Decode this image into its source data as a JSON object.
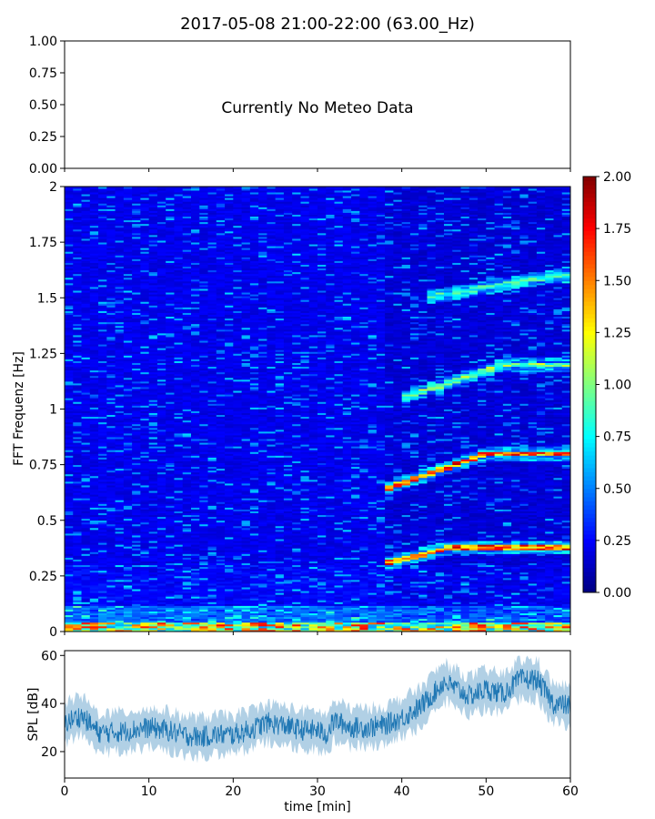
{
  "title": "2017-05-08 21:00-22:00 (63.00_Hz)",
  "meteo_panel": {
    "message": "Currently No Meteo Data",
    "yticks": [
      "0.00",
      "0.25",
      "0.50",
      "0.75",
      "1.00"
    ]
  },
  "chart_data": [
    {
      "type": "line",
      "panel": "meteo",
      "annotation": "Currently No Meteo Data",
      "ylim": [
        0,
        1
      ],
      "ytick_labels": [
        "0.00",
        "0.25",
        "0.50",
        "0.75",
        "1.00"
      ],
      "series": []
    },
    {
      "type": "heatmap",
      "panel": "spectrogram",
      "ylabel": "FFT Frequenz [Hz]",
      "xlim": [
        0,
        60
      ],
      "ylim": [
        0,
        2
      ],
      "ytick_labels": [
        "0",
        "0.25",
        "0.5",
        "0.75",
        "1",
        "1.25",
        "1.5",
        "1.75",
        "2"
      ],
      "colormap": "jet",
      "colorbar": {
        "range": [
          0,
          2
        ],
        "tick_labels": [
          "0.00",
          "0.25",
          "0.50",
          "0.75",
          "1.00",
          "1.25",
          "1.50",
          "1.75",
          "2.00"
        ]
      },
      "features": [
        {
          "description": "strong low-frequency band",
          "freq_hz": 0.02,
          "value": 1.8
        },
        {
          "description": "rising tone",
          "t_min": [
            38,
            46
          ],
          "freq_hz": [
            0.31,
            0.38
          ],
          "value": 1.9
        },
        {
          "description": "rising tone",
          "t_min": [
            38,
            50
          ],
          "freq_hz": [
            0.64,
            0.8
          ],
          "value": 1.9
        },
        {
          "description": "rising tone",
          "t_min": [
            40,
            52
          ],
          "freq_hz": [
            1.05,
            1.2
          ],
          "value": 1.2
        },
        {
          "description": "upper tone",
          "t_min": [
            43,
            58
          ],
          "freq_hz": [
            1.5,
            1.6
          ],
          "value": 1.0
        }
      ]
    },
    {
      "type": "line",
      "panel": "spl",
      "xlabel": "time [min]",
      "ylabel": "SPL [dB]",
      "xlim": [
        0,
        60
      ],
      "ylim": [
        9,
        62
      ],
      "xtick_labels": [
        "0",
        "10",
        "20",
        "30",
        "40",
        "50",
        "60"
      ],
      "ytick_labels": [
        "20",
        "40",
        "60"
      ],
      "color": "#1f77b4",
      "series": [
        {
          "x": [
            0,
            2,
            4,
            6,
            8,
            10,
            12,
            14,
            16,
            18,
            20,
            22,
            24,
            26,
            28,
            30,
            31,
            32,
            34,
            36,
            38,
            40,
            42,
            44,
            45,
            46,
            48,
            50,
            52,
            54,
            56,
            58,
            60
          ],
          "y": [
            32,
            35,
            28,
            28,
            29,
            30,
            29,
            27,
            26,
            27,
            27,
            29,
            32,
            31,
            29,
            29,
            27,
            33,
            30,
            30,
            31,
            34,
            38,
            45,
            49,
            47,
            43,
            46,
            44,
            50,
            50,
            40,
            39
          ]
        }
      ]
    }
  ],
  "colors": {
    "line": "#1f77b4",
    "frame": "#000000",
    "background": "#ffffff"
  }
}
